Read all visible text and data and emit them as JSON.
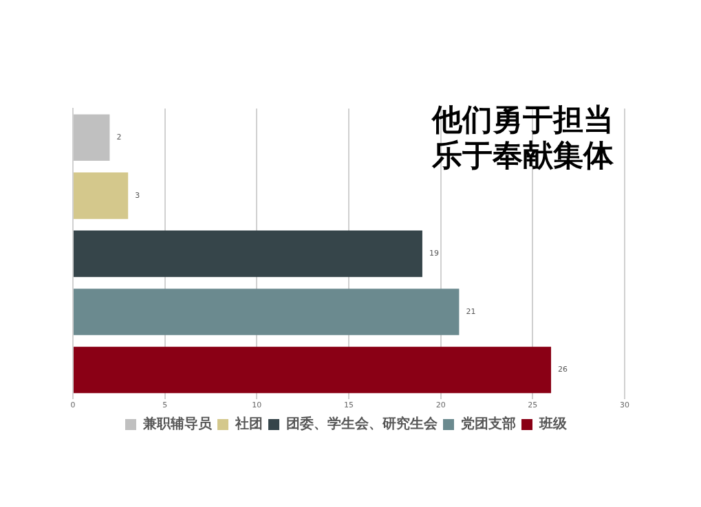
{
  "chart_data": {
    "type": "bar",
    "orientation": "horizontal",
    "title": "他们勇于担当乐于奉献集体",
    "categories": [
      null,
      null,
      null,
      null,
      null
    ],
    "series": [
      {
        "name": "兼职辅导员",
        "color": "#c0c0c0",
        "values": [
          2,
          null,
          null,
          null,
          null
        ]
      },
      {
        "name": "社团",
        "color": "#d4c88c",
        "values": [
          null,
          3,
          null,
          null,
          null
        ]
      },
      {
        "name": "团委、学生会、研究生会",
        "color": "#36454a",
        "values": [
          null,
          null,
          19,
          null,
          null
        ]
      },
      {
        "name": "党团支部",
        "color": "#6b8a8f",
        "values": [
          null,
          null,
          null,
          21,
          null
        ]
      },
      {
        "name": "班级",
        "color": "#8a0015",
        "values": [
          null,
          null,
          null,
          null,
          26
        ]
      }
    ],
    "xlim": [
      0,
      30
    ],
    "xticks": [
      0,
      5,
      10,
      15,
      20,
      25,
      30
    ],
    "grid": "x",
    "legend": "bottom",
    "data_labels": true
  }
}
